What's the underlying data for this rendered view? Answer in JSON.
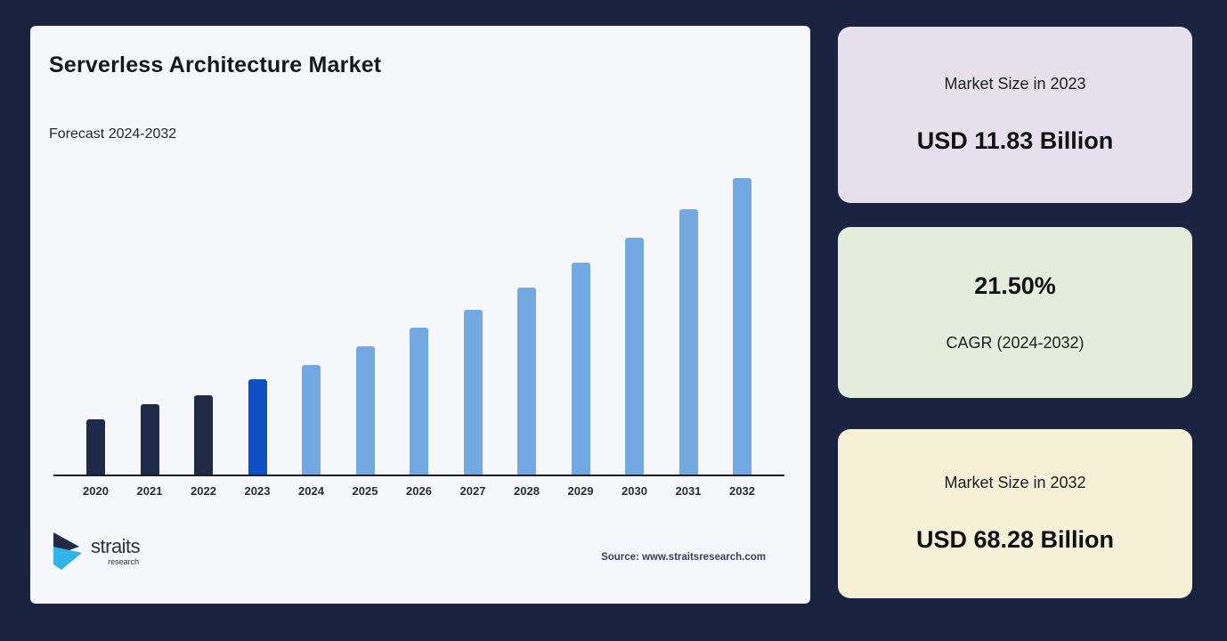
{
  "page": {
    "background": "#1a2340"
  },
  "chart_data": {
    "type": "bar",
    "title": "Serverless Architecture Market",
    "subtitle": "Forecast 2024-2032",
    "source": "Source: www.straitsresearch.com",
    "categories": [
      "2020",
      "2021",
      "2022",
      "2023",
      "2024",
      "2025",
      "2026",
      "2027",
      "2028",
      "2029",
      "2030",
      "2031",
      "2032"
    ],
    "series": [
      {
        "name": "Market size (relative bar height, no y-axis labels shown)",
        "values": [
          62,
          79,
          89,
          107,
          123,
          144,
          165,
          185,
          210,
          238,
          266,
          298,
          333
        ]
      }
    ],
    "roles": [
      "historical",
      "historical",
      "historical",
      "base-year",
      "forecast",
      "forecast",
      "forecast",
      "forecast",
      "forecast",
      "forecast",
      "forecast",
      "forecast",
      "forecast"
    ],
    "colors": {
      "historical": "#1e2a47",
      "base-year": "#0c50c4",
      "forecast": "#73a9e3"
    },
    "annotations": {
      "market_size_2023": "USD 11.83 Billion",
      "market_size_2032": "USD 68.28 Billion",
      "cagr_2024_2032": "21.50%"
    },
    "xlabel": "",
    "ylabel": "",
    "grid": false,
    "legend": false
  },
  "logo": {
    "name": "straits",
    "subtext": "research",
    "icon_navy": "#222a44",
    "icon_cyan": "#2fb3e8"
  },
  "stats": {
    "cards": [
      {
        "label": "Market Size in 2023",
        "value": "USD 11.83 Billion",
        "background": "#e5e0ec"
      },
      {
        "label": "CAGR (2024-2032)",
        "value": "21.50%",
        "background": "#e4ecdb"
      },
      {
        "label": "Market Size in 2032",
        "value": "USD 68.28 Billion",
        "background": "#f6f0d6"
      }
    ]
  }
}
